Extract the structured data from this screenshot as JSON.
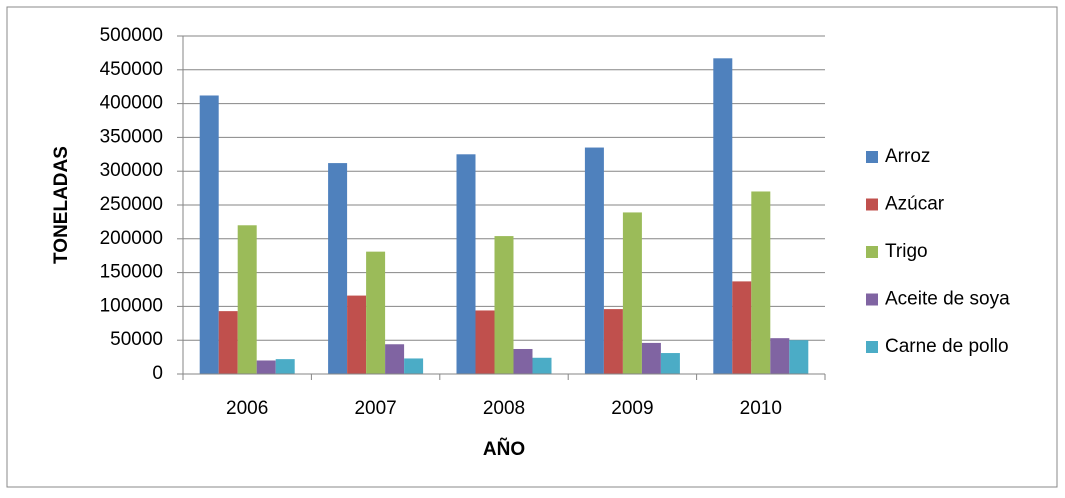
{
  "chart_data": {
    "type": "bar",
    "categories": [
      "2006",
      "2007",
      "2008",
      "2009",
      "2010"
    ],
    "series": [
      {
        "name": "Arroz",
        "color": "#4f81bd",
        "values": [
          412000,
          312000,
          325000,
          335000,
          467000
        ]
      },
      {
        "name": "Azúcar",
        "color": "#c0504d",
        "values": [
          93000,
          116000,
          94000,
          96000,
          137000
        ]
      },
      {
        "name": "Trigo",
        "color": "#9bbb59",
        "values": [
          220000,
          181000,
          204000,
          239000,
          270000
        ]
      },
      {
        "name": "Aceite de soya",
        "color": "#8064a2",
        "values": [
          20000,
          44000,
          37000,
          46000,
          53000
        ]
      },
      {
        "name": "Carne de pollo",
        "color": "#4bacc6",
        "values": [
          22000,
          23000,
          24000,
          31000,
          50000
        ]
      }
    ],
    "ylim": [
      0,
      500000
    ],
    "yticks": [
      0,
      50000,
      100000,
      150000,
      200000,
      250000,
      300000,
      350000,
      400000,
      450000,
      500000
    ],
    "grid": true,
    "y_label": "TONELADAS",
    "x_label": "AÑO",
    "legend": "right"
  }
}
